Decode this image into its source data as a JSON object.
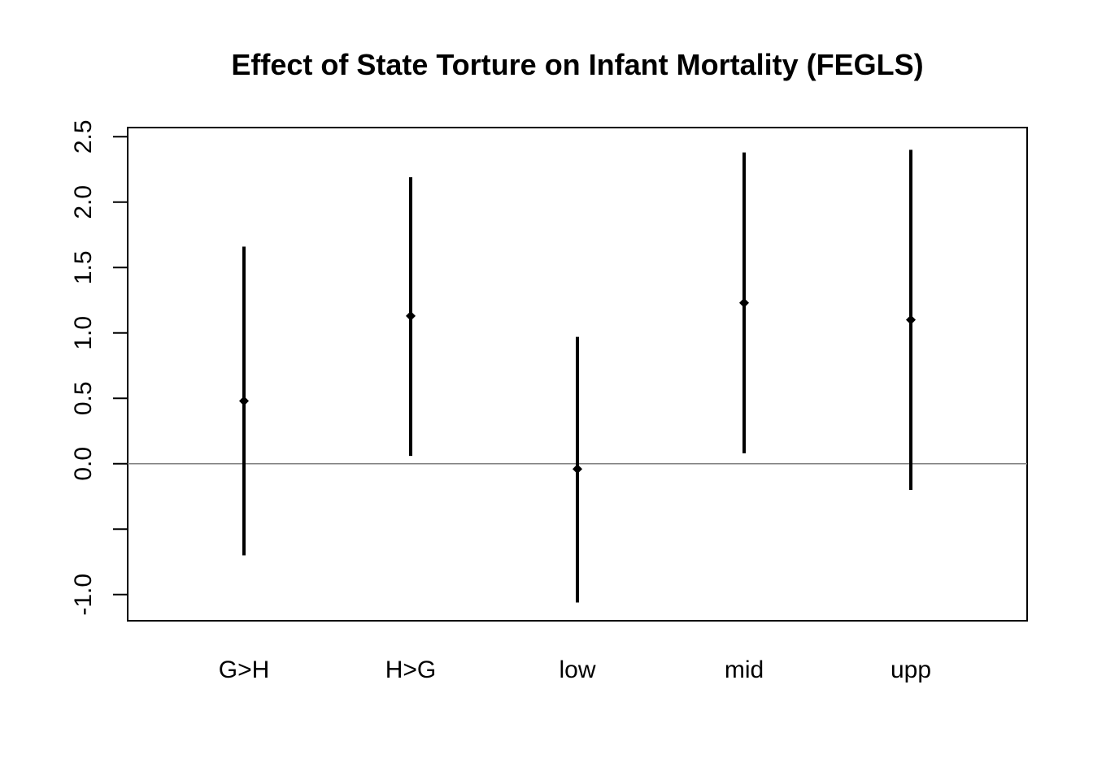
{
  "chart_data": {
    "type": "errorbar",
    "title": "Effect of State Torture on Infant Mortality (FEGLS)",
    "xlabel": "",
    "ylabel": "",
    "categories": [
      "G>H",
      "H>G",
      "low",
      "mid",
      "upp"
    ],
    "estimates": [
      0.48,
      1.13,
      -0.04,
      1.23,
      1.1
    ],
    "lower": [
      -0.7,
      0.06,
      -1.06,
      0.08,
      -0.2
    ],
    "upper": [
      1.66,
      2.19,
      0.97,
      2.38,
      2.4
    ],
    "ylim": [
      -1.2,
      2.57
    ],
    "yticks": [
      -1.0,
      -0.5,
      0.0,
      0.5,
      1.0,
      1.5,
      2.0,
      2.5
    ],
    "ytick_labels": [
      "-1.0",
      "",
      "0.0",
      "0.5",
      "1.0",
      "1.5",
      "2.0",
      "2.5"
    ],
    "reference_line": 0,
    "grid": false,
    "colors": {
      "marks": "#000000",
      "reference_line": "#808080",
      "frame": "#000000"
    }
  }
}
